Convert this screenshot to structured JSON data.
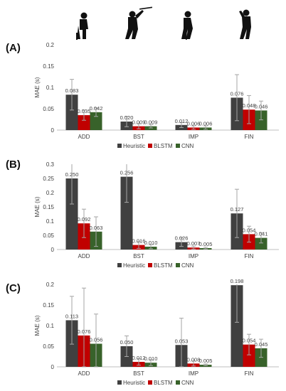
{
  "figure": {
    "silhouettes": [
      "golfer-address-icon",
      "golfer-backswing-top-icon",
      "golfer-impact-icon",
      "golfer-finish-icon"
    ]
  },
  "colors": {
    "Heuristic": "#404040",
    "BLSTM": "#c00000",
    "CNN": "#38622a",
    "errorbar": "#a6a6a6",
    "axis": "#bfbfbf",
    "text": "#404040"
  },
  "chart_data": [
    {
      "panel_label": "(A)",
      "type": "bar",
      "ylabel": "MAE (s)",
      "ylim": [
        0,
        0.2
      ],
      "yticks": [
        "0",
        "0.05",
        "0.1",
        "0.15",
        "0.2"
      ],
      "categories": [
        "ADD",
        "BST",
        "IMP",
        "FIN"
      ],
      "legend_position": "bottom",
      "series": [
        {
          "name": "Heuristic",
          "values": [
            0.083,
            0.02,
            0.012,
            0.076
          ],
          "labels": [
            "0.083",
            "0.020",
            "0.012",
            "0.076"
          ],
          "errors": [
            0.036,
            0.012,
            0.006,
            0.054
          ]
        },
        {
          "name": "BLSTM",
          "values": [
            0.035,
            0.009,
            0.006,
            0.048
          ],
          "labels": [
            "0.035",
            "0.009",
            "0.006",
            "0.048"
          ],
          "errors": [
            0.012,
            0.006,
            0.004,
            0.033
          ]
        },
        {
          "name": "CNN",
          "values": [
            0.042,
            0.009,
            0.006,
            0.046
          ],
          "labels": [
            "0.042",
            "0.009",
            "0.006",
            "0.046"
          ],
          "errors": [
            0.01,
            0.004,
            0.004,
            0.022
          ]
        }
      ]
    },
    {
      "panel_label": "(B)",
      "type": "bar",
      "ylabel": "MAE (s)",
      "ylim": [
        0,
        0.3
      ],
      "yticks": [
        "0",
        "0.05",
        "0.1",
        "0.15",
        "0.2",
        "0.25",
        "0.3"
      ],
      "categories": [
        "ADD",
        "BST",
        "IMP",
        "FIN"
      ],
      "legend_position": "bottom",
      "series": [
        {
          "name": "Heuristic",
          "values": [
            0.25,
            0.256,
            0.026,
            0.127
          ],
          "labels": [
            "0.250",
            "0.256",
            "0.026",
            "0.127"
          ],
          "errors": [
            0.09,
            0.09,
            0.015,
            0.085
          ]
        },
        {
          "name": "BLSTM",
          "values": [
            0.092,
            0.016,
            0.007,
            0.054
          ],
          "labels": [
            "0.092",
            "0.016",
            "0.007",
            "0.054"
          ],
          "errors": [
            0.05,
            0.012,
            0.005,
            0.028
          ]
        },
        {
          "name": "CNN",
          "values": [
            0.063,
            0.01,
            0.005,
            0.041
          ],
          "labels": [
            "0.063",
            "0.010",
            "0.005",
            "0.041"
          ],
          "errors": [
            0.052,
            0.007,
            0.003,
            0.018
          ]
        }
      ]
    },
    {
      "panel_label": "(C)",
      "type": "bar",
      "ylabel": "MAE (s)",
      "ylim": [
        0,
        0.2
      ],
      "yticks": [
        "0",
        "0.05",
        "0.1",
        "0.15",
        "0.2"
      ],
      "categories": [
        "ADD",
        "BST",
        "IMP",
        "FIN"
      ],
      "legend_position": "bottom",
      "series": [
        {
          "name": "Heuristic",
          "values": [
            0.113,
            0.05,
            0.053,
            0.198
          ],
          "labels": [
            "0.113",
            "0.050",
            "0.053",
            "0.198"
          ],
          "errors": [
            0.058,
            0.025,
            0.065,
            0.09
          ]
        },
        {
          "name": "BLSTM",
          "values": [
            0.076,
            0.012,
            0.008,
            0.054
          ],
          "labels": [
            "0.076",
            "0.012",
            "0.008",
            "0.054"
          ],
          "errors": [
            0.115,
            0.008,
            0.006,
            0.025
          ]
        },
        {
          "name": "CNN",
          "values": [
            0.056,
            0.01,
            0.005,
            0.045
          ],
          "labels": [
            "0.056",
            "0.010",
            "0.005",
            "0.045"
          ],
          "errors": [
            0.072,
            0.007,
            0.002,
            0.022
          ]
        }
      ]
    }
  ]
}
